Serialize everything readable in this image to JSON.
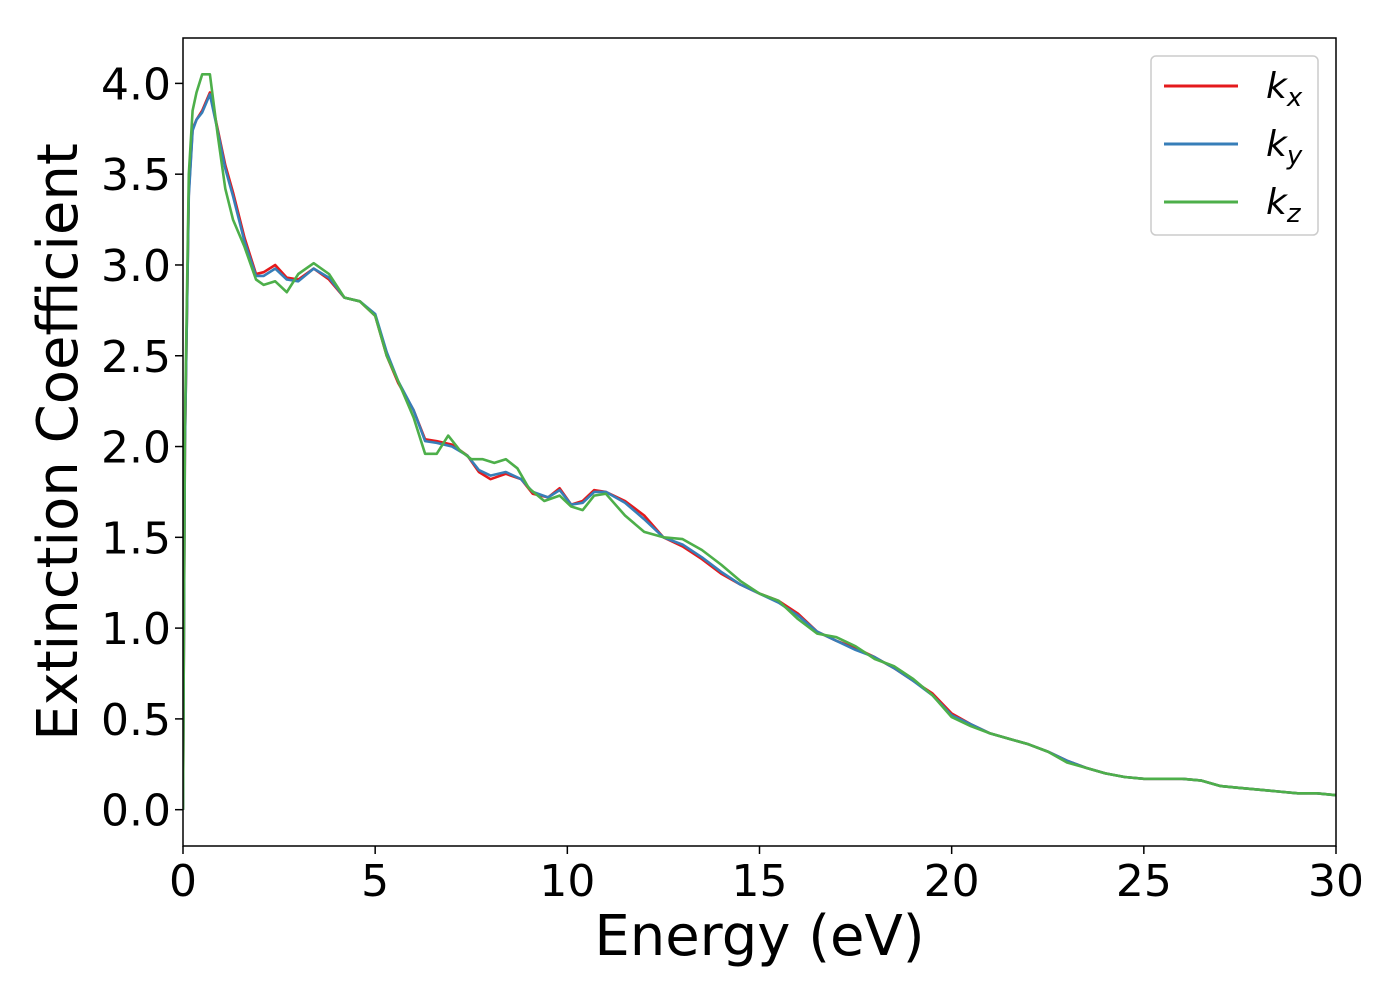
{
  "chart_data": {
    "type": "line",
    "xlabel": "Energy (eV)",
    "ylabel": "Extinction Coefficient",
    "xlim": [
      0,
      30
    ],
    "ylim": [
      -0.2,
      4.25
    ],
    "xticks": [
      0,
      5,
      10,
      15,
      20,
      25,
      30
    ],
    "xtick_labels": [
      "0",
      "5",
      "10",
      "15",
      "20",
      "25",
      "30"
    ],
    "yticks": [
      0.0,
      0.5,
      1.0,
      1.5,
      2.0,
      2.5,
      3.0,
      3.5,
      4.0
    ],
    "ytick_labels": [
      "0.0",
      "0.5",
      "1.0",
      "1.5",
      "2.0",
      "2.5",
      "3.0",
      "3.5",
      "4.0"
    ],
    "grid": false,
    "legend_position": "top-right",
    "series": [
      {
        "name": "k_x",
        "legend_base": "k",
        "legend_sub": "x",
        "color": "#e41a1c",
        "x": [
          0,
          0.05,
          0.15,
          0.25,
          0.35,
          0.5,
          0.7,
          0.9,
          1.1,
          1.3,
          1.6,
          1.9,
          2.1,
          2.4,
          2.7,
          3.0,
          3.4,
          3.8,
          4.2,
          4.6,
          5.0,
          5.3,
          5.6,
          6.0,
          6.3,
          6.6,
          7.0,
          7.4,
          7.7,
          8.0,
          8.4,
          8.8,
          9.1,
          9.5,
          9.8,
          10.1,
          10.4,
          10.7,
          11.0,
          11.5,
          12.0,
          12.5,
          13.0,
          13.5,
          14.0,
          14.5,
          15.0,
          15.5,
          16.0,
          16.5,
          17.0,
          17.5,
          18.0,
          18.5,
          19.0,
          19.5,
          20.0,
          20.5,
          21.0,
          21.5,
          22.0,
          22.5,
          23.0,
          23.5,
          24.0,
          24.5,
          25.0,
          25.5,
          26.0,
          26.5,
          27.0,
          27.5,
          28.0,
          28.5,
          29.0,
          29.5,
          30.0
        ],
        "values": [
          0.0,
          2.0,
          3.4,
          3.75,
          3.8,
          3.85,
          3.95,
          3.75,
          3.55,
          3.4,
          3.15,
          2.95,
          2.96,
          3.0,
          2.93,
          2.92,
          2.98,
          2.92,
          2.82,
          2.8,
          2.72,
          2.5,
          2.35,
          2.2,
          2.04,
          2.03,
          2.01,
          1.95,
          1.86,
          1.82,
          1.85,
          1.82,
          1.74,
          1.72,
          1.77,
          1.68,
          1.7,
          1.76,
          1.75,
          1.7,
          1.62,
          1.5,
          1.45,
          1.38,
          1.3,
          1.24,
          1.19,
          1.15,
          1.08,
          0.98,
          0.93,
          0.89,
          0.84,
          0.78,
          0.71,
          0.64,
          0.53,
          0.47,
          0.42,
          0.39,
          0.36,
          0.32,
          0.27,
          0.23,
          0.2,
          0.18,
          0.17,
          0.17,
          0.17,
          0.16,
          0.13,
          0.12,
          0.11,
          0.1,
          0.09,
          0.09,
          0.08
        ]
      },
      {
        "name": "k_y",
        "legend_base": "k",
        "legend_sub": "y",
        "color": "#377eb8",
        "x": [
          0,
          0.05,
          0.15,
          0.25,
          0.35,
          0.5,
          0.7,
          0.9,
          1.1,
          1.3,
          1.6,
          1.9,
          2.1,
          2.4,
          2.7,
          3.0,
          3.4,
          3.8,
          4.2,
          4.6,
          5.0,
          5.3,
          5.6,
          6.0,
          6.3,
          6.6,
          7.0,
          7.4,
          7.7,
          8.0,
          8.4,
          8.8,
          9.1,
          9.5,
          9.8,
          10.1,
          10.4,
          10.7,
          11.0,
          11.5,
          12.0,
          12.5,
          13.0,
          13.5,
          14.0,
          14.5,
          15.0,
          15.5,
          16.0,
          16.5,
          17.0,
          17.5,
          18.0,
          18.5,
          19.0,
          19.5,
          20.0,
          20.5,
          21.0,
          21.5,
          22.0,
          22.5,
          23.0,
          23.5,
          24.0,
          24.5,
          25.0,
          25.5,
          26.0,
          26.5,
          27.0,
          27.5,
          28.0,
          28.5,
          29.0,
          29.5,
          30.0
        ],
        "values": [
          0.0,
          2.0,
          3.38,
          3.74,
          3.8,
          3.84,
          3.94,
          3.74,
          3.53,
          3.38,
          3.13,
          2.94,
          2.94,
          2.98,
          2.92,
          2.91,
          2.98,
          2.93,
          2.82,
          2.8,
          2.73,
          2.52,
          2.36,
          2.2,
          2.03,
          2.02,
          2.0,
          1.95,
          1.87,
          1.84,
          1.86,
          1.82,
          1.75,
          1.72,
          1.76,
          1.68,
          1.69,
          1.75,
          1.75,
          1.69,
          1.6,
          1.5,
          1.46,
          1.39,
          1.31,
          1.24,
          1.19,
          1.14,
          1.07,
          0.98,
          0.93,
          0.88,
          0.84,
          0.78,
          0.71,
          0.63,
          0.52,
          0.47,
          0.42,
          0.39,
          0.36,
          0.32,
          0.27,
          0.23,
          0.2,
          0.18,
          0.17,
          0.17,
          0.17,
          0.16,
          0.13,
          0.12,
          0.11,
          0.1,
          0.09,
          0.09,
          0.08
        ]
      },
      {
        "name": "k_z",
        "legend_base": "k",
        "legend_sub": "z",
        "color": "#4daf4a",
        "x": [
          0,
          0.05,
          0.15,
          0.25,
          0.35,
          0.5,
          0.7,
          0.9,
          1.1,
          1.3,
          1.6,
          1.9,
          2.1,
          2.4,
          2.7,
          3.0,
          3.4,
          3.8,
          4.2,
          4.6,
          5.0,
          5.3,
          5.6,
          6.0,
          6.3,
          6.6,
          6.9,
          7.2,
          7.5,
          7.8,
          8.1,
          8.4,
          8.7,
          9.0,
          9.4,
          9.8,
          10.1,
          10.4,
          10.7,
          11.0,
          11.5,
          12.0,
          12.5,
          13.0,
          13.5,
          14.0,
          14.5,
          15.0,
          15.5,
          16.0,
          16.5,
          17.0,
          17.5,
          18.0,
          18.5,
          19.0,
          19.5,
          20.0,
          20.5,
          21.0,
          21.5,
          22.0,
          22.5,
          23.0,
          23.5,
          24.0,
          24.5,
          25.0,
          25.5,
          26.0,
          26.5,
          27.0,
          27.5,
          28.0,
          28.5,
          29.0,
          29.5,
          30.0
        ],
        "values": [
          0.0,
          2.1,
          3.5,
          3.85,
          3.95,
          4.05,
          4.05,
          3.72,
          3.42,
          3.25,
          3.1,
          2.92,
          2.89,
          2.91,
          2.85,
          2.95,
          3.01,
          2.95,
          2.82,
          2.8,
          2.72,
          2.5,
          2.36,
          2.16,
          1.96,
          1.96,
          2.06,
          1.98,
          1.93,
          1.93,
          1.91,
          1.93,
          1.88,
          1.77,
          1.7,
          1.73,
          1.67,
          1.65,
          1.73,
          1.74,
          1.62,
          1.53,
          1.5,
          1.49,
          1.43,
          1.35,
          1.26,
          1.19,
          1.15,
          1.05,
          0.97,
          0.95,
          0.9,
          0.83,
          0.79,
          0.72,
          0.63,
          0.51,
          0.46,
          0.42,
          0.39,
          0.36,
          0.32,
          0.26,
          0.23,
          0.2,
          0.18,
          0.17,
          0.17,
          0.17,
          0.16,
          0.13,
          0.12,
          0.11,
          0.1,
          0.09,
          0.09,
          0.08
        ]
      }
    ]
  }
}
